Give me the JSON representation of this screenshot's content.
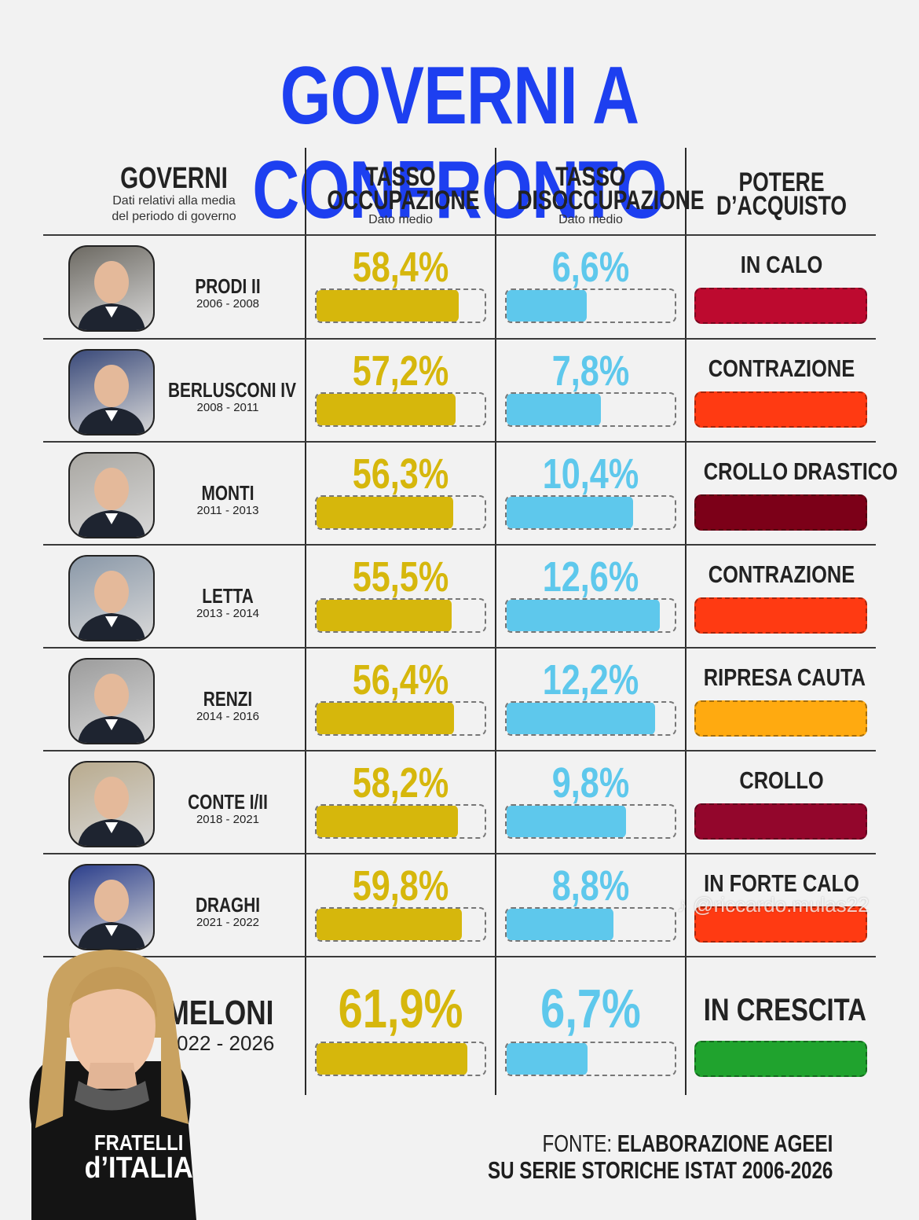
{
  "title": "GOVERNI A CONFRONTO",
  "headers": {
    "governi": "GOVERNI",
    "governi_sub1": "Dati relativi alla media",
    "governi_sub2": "del periodo di governo",
    "occ1": "TASSO",
    "occ2": "OCCUPAZIONE",
    "occ_sub": "Dato medio",
    "dis1": "TASSO",
    "dis2": "DISOCCUPAZIONE",
    "dis_sub": "Dato medio",
    "pot1": "POTERE",
    "pot2": "D’ACQUISTO"
  },
  "colors": {
    "title": "#1d3ff0",
    "occupazione": "#d6b70c",
    "disoccupazione": "#5ec8ec",
    "in_calo": "#bd0a2f",
    "contrazione": "#ff3a12",
    "crollo_drastico": "#7c0018",
    "ripresa_cauta": "#ffaa10",
    "crollo": "#93062c",
    "in_forte_calo": "#ff3a12",
    "in_crescita": "#20a32e"
  },
  "chart_data": {
    "type": "table",
    "title": "GOVERNI A CONFRONTO",
    "columns": [
      "GOVERNI",
      "TASSO OCCUPAZIONE",
      "TASSO DISOCCUPAZIONE",
      "POTERE D’ACQUISTO"
    ],
    "rows": [
      {
        "name": "PRODI II",
        "years": "2006 - 2008",
        "occupazione": 58.4,
        "occupazione_label": "58,4%",
        "disoccupazione": 6.6,
        "disoccupazione_label": "6,6%",
        "potere": "IN CALO",
        "potere_color": "#bd0a2f"
      },
      {
        "name": "BERLUSCONI IV",
        "years": "2008 - 2011",
        "occupazione": 57.2,
        "occupazione_label": "57,2%",
        "disoccupazione": 7.8,
        "disoccupazione_label": "7,8%",
        "potere": "CONTRAZIONE",
        "potere_color": "#ff3a12"
      },
      {
        "name": "MONTI",
        "years": "2011 - 2013",
        "occupazione": 56.3,
        "occupazione_label": "56,3%",
        "disoccupazione": 10.4,
        "disoccupazione_label": "10,4%",
        "potere": "CROLLO DRASTICO",
        "potere_color": "#7c0018"
      },
      {
        "name": "LETTA",
        "years": "2013 - 2014",
        "occupazione": 55.5,
        "occupazione_label": "55,5%",
        "disoccupazione": 12.6,
        "disoccupazione_label": "12,6%",
        "potere": "CONTRAZIONE",
        "potere_color": "#ff3a12"
      },
      {
        "name": "RENZI",
        "years": "2014 - 2016",
        "occupazione": 56.4,
        "occupazione_label": "56,4%",
        "disoccupazione": 12.2,
        "disoccupazione_label": "12,2%",
        "potere": "RIPRESA CAUTA",
        "potere_color": "#ffaa10"
      },
      {
        "name": "CONTE I/II",
        "years": "2018 - 2021",
        "occupazione": 58.2,
        "occupazione_label": "58,2%",
        "disoccupazione": 9.8,
        "disoccupazione_label": "9,8%",
        "potere": "CROLLO",
        "potere_color": "#93062c"
      },
      {
        "name": "DRAGHI",
        "years": "2021 - 2022",
        "occupazione": 59.8,
        "occupazione_label": "59,8%",
        "disoccupazione": 8.8,
        "disoccupazione_label": "8,8%",
        "potere": "IN FORTE CALO",
        "potere_color": "#ff3a12"
      },
      {
        "name": "MELONI",
        "years": "2022 - 2026",
        "occupazione": 61.9,
        "occupazione_label": "61,9%",
        "disoccupazione": 6.7,
        "disoccupazione_label": "6,7%",
        "potere": "IN CRESCITA",
        "potere_color": "#20a32e"
      }
    ]
  },
  "fonte": {
    "label": "FONTE:",
    "line1": "ELABORAZIONE AGEEI",
    "line2": "SU SERIE STORICHE ISTAT 2006-2026"
  },
  "watermark": "@riccardo.mulas22",
  "brand": {
    "line1": "FRATELLI",
    "line2": "d’ITALIA"
  }
}
